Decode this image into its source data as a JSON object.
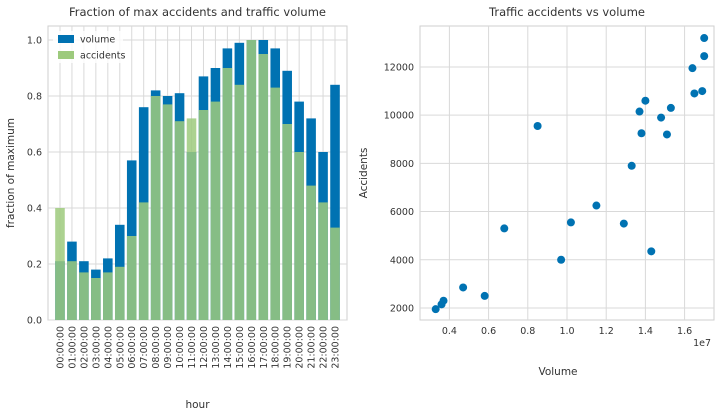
{
  "chart_data": [
    {
      "type": "bar",
      "title": "Fraction of max accidents and traffic volume",
      "xlabel": "hour",
      "ylabel": "fraction of maximum",
      "ylim": [
        0,
        1.05
      ],
      "yticks": [
        0.0,
        0.2,
        0.4,
        0.6,
        0.8,
        1.0
      ],
      "ytick_labels": [
        "0.0",
        "0.2",
        "0.4",
        "0.6",
        "0.8",
        "1.0"
      ],
      "grid": true,
      "legend": "top-left",
      "categories": [
        "00:00:00",
        "01:00:00",
        "02:00:00",
        "03:00:00",
        "04:00:00",
        "05:00:00",
        "06:00:00",
        "07:00:00",
        "08:00:00",
        "09:00:00",
        "10:00:00",
        "11:00:00",
        "12:00:00",
        "13:00:00",
        "14:00:00",
        "15:00:00",
        "16:00:00",
        "17:00:00",
        "18:00:00",
        "19:00:00",
        "20:00:00",
        "21:00:00",
        "22:00:00",
        "23:00:00"
      ],
      "series": [
        {
          "name": "volume",
          "color": "#0072b2",
          "values": [
            0.21,
            0.28,
            0.21,
            0.18,
            0.22,
            0.34,
            0.57,
            0.76,
            0.82,
            0.8,
            0.81,
            0.6,
            0.87,
            0.9,
            0.97,
            0.99,
            1.0,
            1.0,
            0.97,
            0.89,
            0.78,
            0.72,
            0.6,
            0.84
          ]
        },
        {
          "name": "accidents",
          "color": "#9dca7d",
          "values": [
            0.4,
            0.21,
            0.17,
            0.15,
            0.17,
            0.19,
            0.3,
            0.42,
            0.8,
            0.77,
            0.71,
            0.72,
            0.75,
            0.78,
            0.9,
            0.84,
            1.0,
            0.95,
            0.83,
            0.7,
            0.6,
            0.48,
            0.42,
            0.33
          ]
        }
      ]
    },
    {
      "type": "scatter",
      "title": "Traffic accidents vs volume",
      "xlabel": "Volume",
      "ylabel": "Accidents",
      "x_offset_label": "1e7",
      "xlim": [
        0.25,
        1.75
      ],
      "ylim": [
        1500,
        13700
      ],
      "xticks": [
        0.4,
        0.6,
        0.8,
        1.0,
        1.2,
        1.4,
        1.6
      ],
      "xtick_labels": [
        "0.4",
        "0.6",
        "0.8",
        "1.0",
        "1.2",
        "1.4",
        "1.6"
      ],
      "yticks": [
        2000,
        4000,
        6000,
        8000,
        10000,
        12000
      ],
      "ytick_labels": [
        "2000",
        "4000",
        "6000",
        "8000",
        "10000",
        "12000"
      ],
      "grid": true,
      "color": "#0072b2",
      "points": [
        {
          "x": 0.33,
          "y": 1950
        },
        {
          "x": 0.36,
          "y": 2150
        },
        {
          "x": 0.37,
          "y": 2300
        },
        {
          "x": 0.47,
          "y": 2850
        },
        {
          "x": 0.58,
          "y": 2500
        },
        {
          "x": 0.68,
          "y": 5300
        },
        {
          "x": 0.85,
          "y": 9550
        },
        {
          "x": 0.97,
          "y": 4000
        },
        {
          "x": 1.02,
          "y": 5550
        },
        {
          "x": 1.15,
          "y": 6250
        },
        {
          "x": 1.29,
          "y": 5500
        },
        {
          "x": 1.33,
          "y": 7900
        },
        {
          "x": 1.37,
          "y": 10150
        },
        {
          "x": 1.38,
          "y": 9250
        },
        {
          "x": 1.4,
          "y": 10600
        },
        {
          "x": 1.43,
          "y": 4350
        },
        {
          "x": 1.48,
          "y": 9900
        },
        {
          "x": 1.51,
          "y": 9200
        },
        {
          "x": 1.53,
          "y": 10300
        },
        {
          "x": 1.64,
          "y": 11950
        },
        {
          "x": 1.65,
          "y": 10900
        },
        {
          "x": 1.69,
          "y": 11000
        },
        {
          "x": 1.7,
          "y": 12450
        },
        {
          "x": 1.7,
          "y": 13200
        }
      ]
    }
  ]
}
